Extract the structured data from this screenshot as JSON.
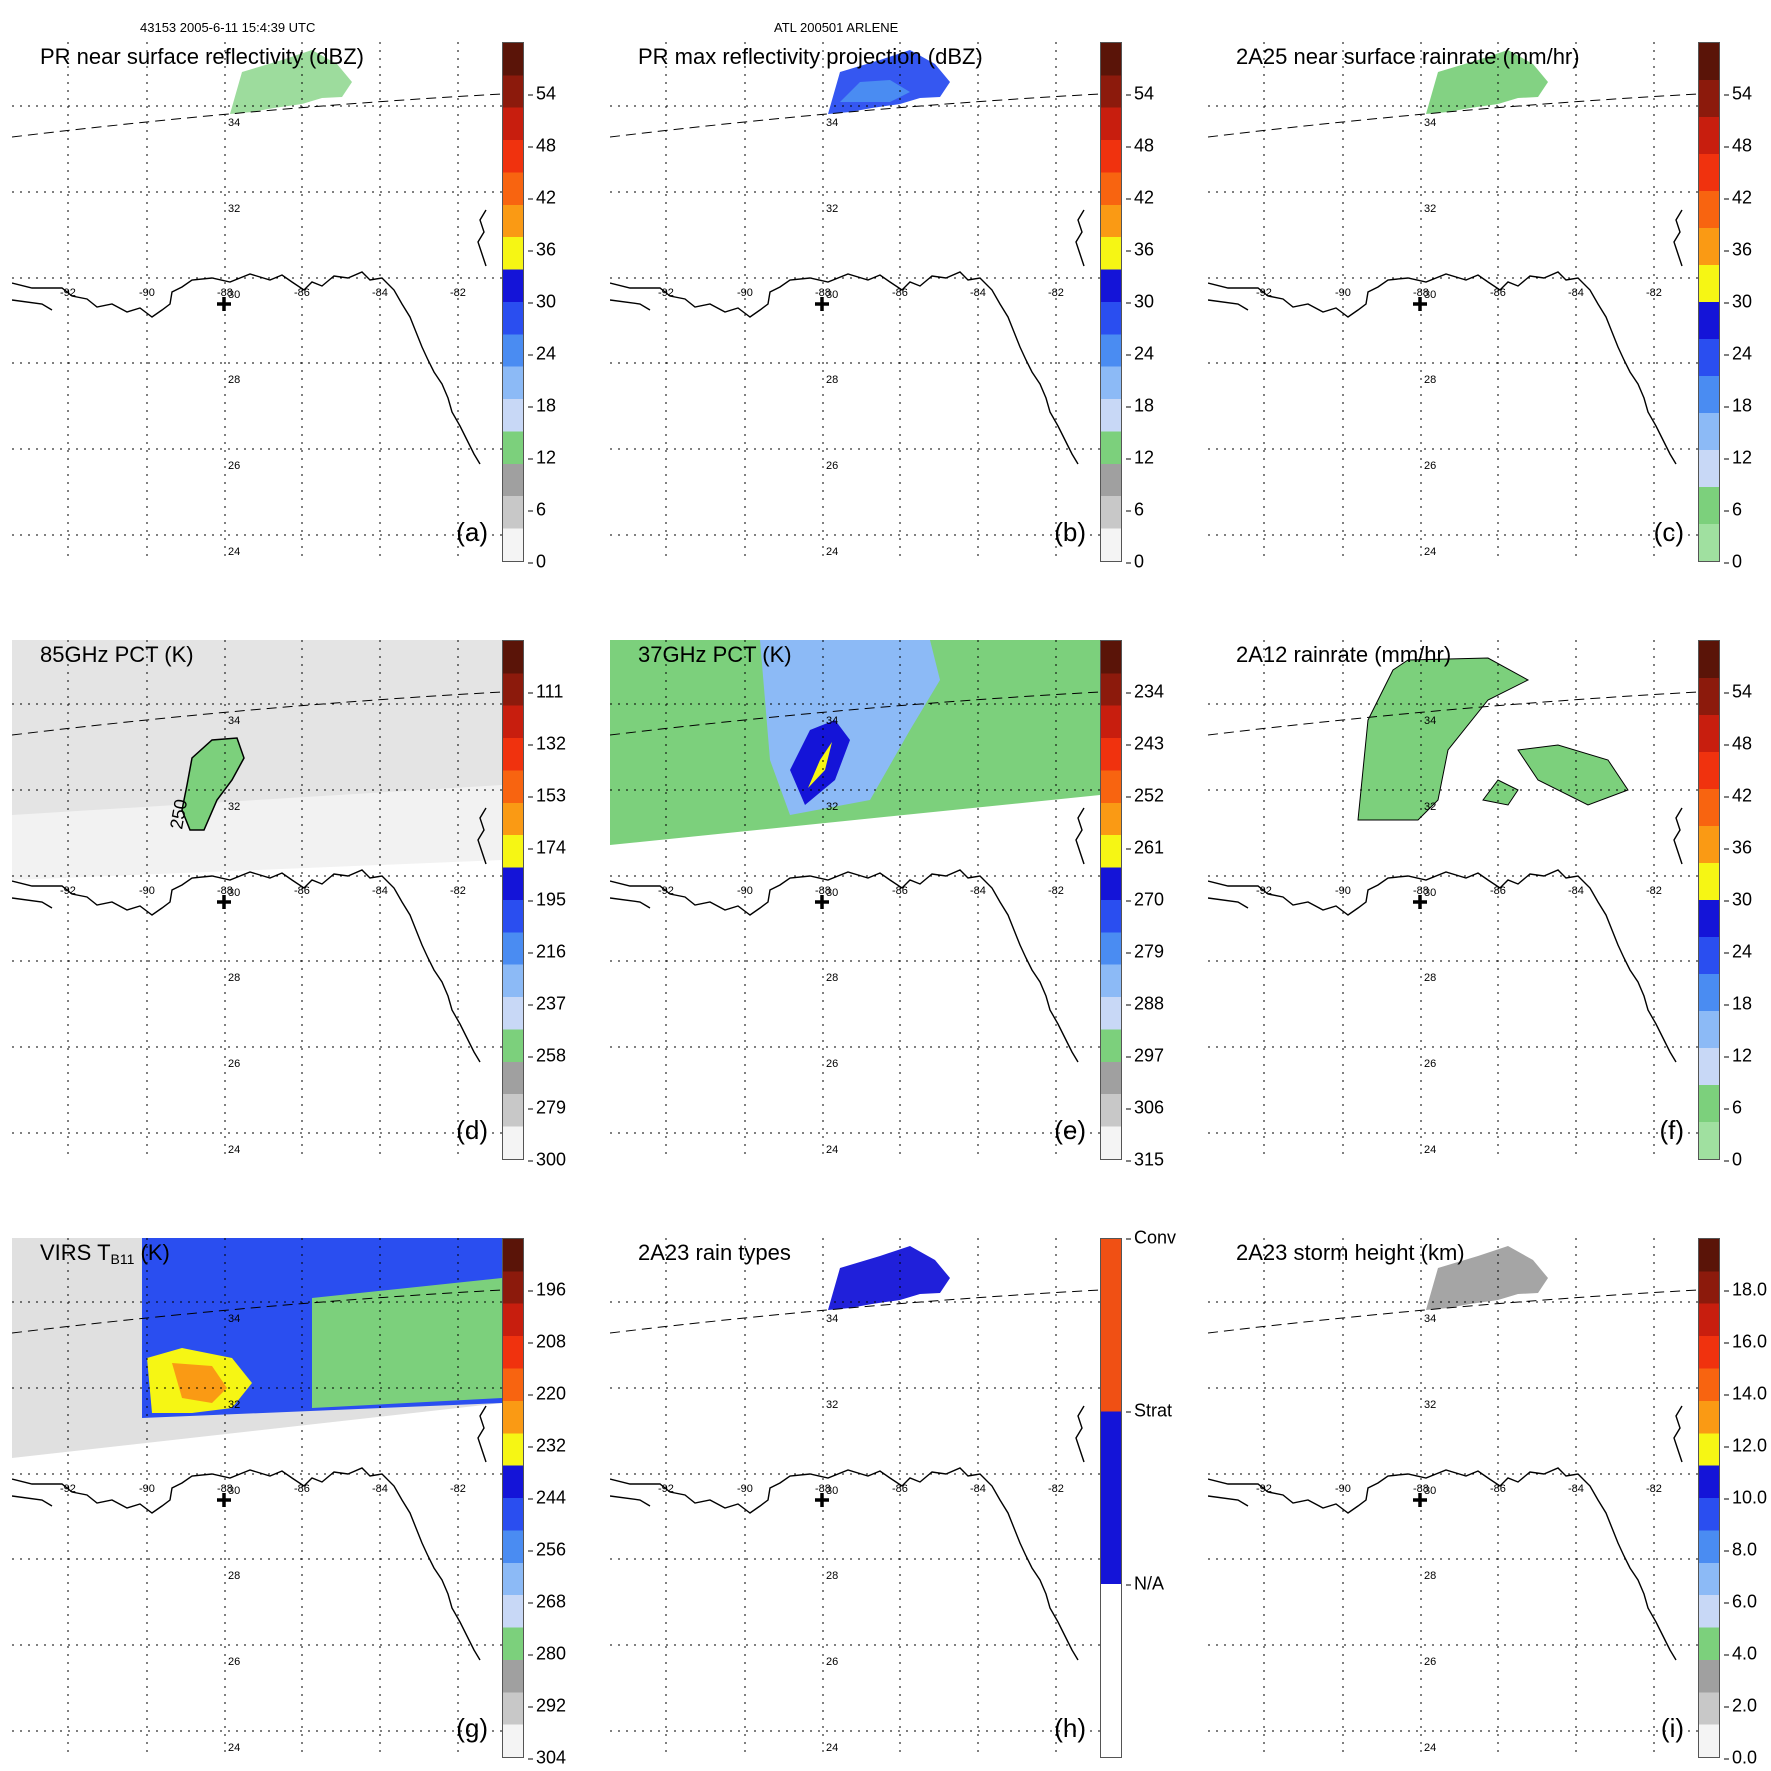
{
  "header": {
    "orbit_time": "43153 2005-6-11 15:4:39 UTC",
    "storm": "ATL 200501 ARLENE"
  },
  "grid": {
    "lon_labels": [
      "-92",
      "-90",
      "-88",
      "-86",
      "-84",
      "-82"
    ],
    "lat_labels": [
      "34",
      "32",
      "30",
      "28",
      "26",
      "24"
    ]
  },
  "panels": [
    {
      "id": "a",
      "title": "PR near surface reflectivity (dBZ)",
      "label": "(a)",
      "cbar": "dbz",
      "ticks": [
        "54",
        "48",
        "42",
        "36",
        "30",
        "24",
        "18",
        "12",
        "6",
        "0"
      ]
    },
    {
      "id": "b",
      "title": "PR max reflectivity projection (dBZ)",
      "label": "(b)",
      "cbar": "dbz",
      "ticks": [
        "54",
        "48",
        "42",
        "36",
        "30",
        "24",
        "18",
        "12",
        "6",
        "0"
      ]
    },
    {
      "id": "c",
      "title": "2A25 near surface rainrate (mm/hr)",
      "label": "(c)",
      "cbar": "rain",
      "ticks": [
        "54",
        "48",
        "42",
        "36",
        "30",
        "24",
        "18",
        "12",
        "6",
        "0"
      ]
    },
    {
      "id": "d",
      "title": "85GHz PCT (K)",
      "label": "(d)",
      "cbar": "pct",
      "ticks": [
        "111",
        "132",
        "153",
        "174",
        "195",
        "216",
        "237",
        "258",
        "279",
        "300"
      ],
      "contour_label": "250"
    },
    {
      "id": "e",
      "title": "37GHz PCT (K)",
      "label": "(e)",
      "cbar": "pct",
      "ticks": [
        "234",
        "243",
        "252",
        "261",
        "270",
        "279",
        "288",
        "297",
        "306",
        "315"
      ]
    },
    {
      "id": "f",
      "title": "2A12 rainrate (mm/hr)",
      "label": "(f)",
      "cbar": "rain",
      "ticks": [
        "54",
        "48",
        "42",
        "36",
        "30",
        "24",
        "18",
        "12",
        "6",
        "0"
      ]
    },
    {
      "id": "g",
      "title_main": "VIRS T",
      "title_sub": "B11",
      "title_unit": "(K)",
      "label": "(g)",
      "cbar": "pct",
      "ticks": [
        "196",
        "208",
        "220",
        "232",
        "244",
        "256",
        "268",
        "280",
        "292",
        "304"
      ]
    },
    {
      "id": "h",
      "title": "2A23 rain types",
      "label": "(h)",
      "cbar": "types",
      "ticks": [
        "Conv",
        "Strat",
        "N/A"
      ]
    },
    {
      "id": "i",
      "title": "2A23 storm height (km)",
      "label": "(i)",
      "cbar": "dbz",
      "ticks": [
        "18.0",
        "16.0",
        "14.0",
        "12.0",
        "10.0",
        "8.0",
        "6.0",
        "4.0",
        "2.0",
        "0.0"
      ]
    }
  ],
  "colors": {
    "dbz": [
      "#5a1408",
      "#8c1a0c",
      "#c81e0e",
      "#f0320e",
      "#f86410",
      "#fa9a14",
      "#f6f614",
      "#1414d8",
      "#2a4ef0",
      "#4a8cf2",
      "#8cbaf6",
      "#c8d8f6",
      "#7cd07c",
      "#a0a0a0",
      "#c8c8c8",
      "#f4f4f4"
    ],
    "rain": [
      "#5a1408",
      "#8c1a0c",
      "#c81e0e",
      "#f0320e",
      "#f86410",
      "#fa9a14",
      "#f6f614",
      "#1414d8",
      "#2a4ef0",
      "#4a8cf2",
      "#8cbaf6",
      "#c8d8f6",
      "#7cd07c",
      "#a0e0a0"
    ],
    "types_conv": "#f05014",
    "types_strat": "#1414d8",
    "green": "#7cd07c",
    "blue": "#2a4ef0",
    "yellow": "#f6f614",
    "orange": "#fa9a14"
  }
}
